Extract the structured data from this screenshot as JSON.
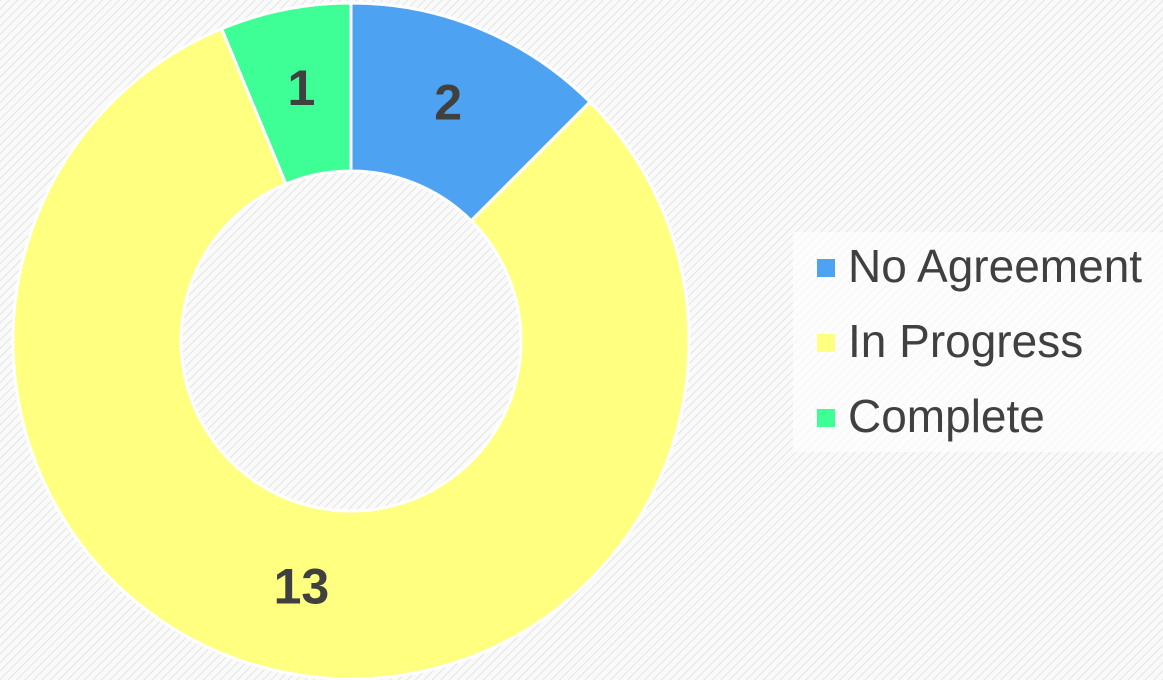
{
  "chart_data": {
    "type": "donut",
    "categories": [
      "No Agreement",
      "In Progress",
      "Complete"
    ],
    "values": [
      2,
      13,
      1
    ],
    "colors": [
      "#4da3f2",
      "#ffff80",
      "#3dff95"
    ],
    "legend": "right"
  }
}
